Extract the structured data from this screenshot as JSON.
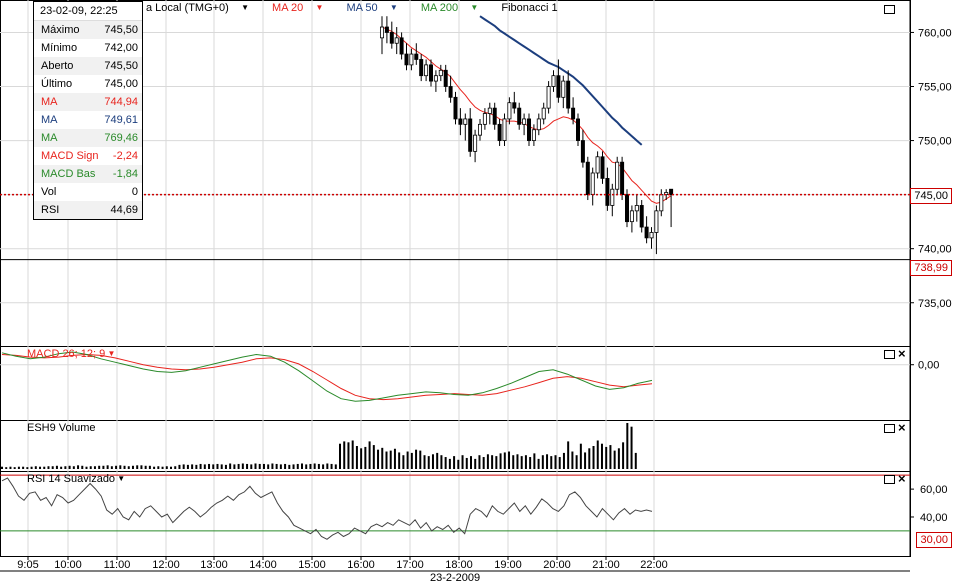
{
  "tooltip": {
    "header": "23-02-09, 22:25",
    "rows": [
      {
        "label": "Máximo",
        "value": "745,50",
        "color": "#000000"
      },
      {
        "label": "Mínimo",
        "value": "742,00",
        "color": "#000000"
      },
      {
        "label": "Aberto",
        "value": "745,50",
        "color": "#000000"
      },
      {
        "label": "Último",
        "value": "745,00",
        "color": "#000000"
      },
      {
        "label": "MA",
        "value": "744,94",
        "color": "#e8241e"
      },
      {
        "label": "MA",
        "value": "749,61",
        "color": "#1c3e7e"
      },
      {
        "label": "MA",
        "value": "769,46",
        "color": "#2a8a2a"
      },
      {
        "label": "MACD Sign",
        "value": "-2,24",
        "color": "#e8241e"
      },
      {
        "label": "MACD Bas",
        "value": "-1,84",
        "color": "#2a8a2a"
      },
      {
        "label": "Vol",
        "value": "0",
        "color": "#000000"
      },
      {
        "label": "RSI",
        "value": "44,69",
        "color": "#000000"
      }
    ]
  },
  "topbar": {
    "timezone": "a Local (TMG+0)",
    "ma20": "MA 20",
    "ma50": "MA 50",
    "ma200": "MA 200",
    "fib": "Fibonacci 1"
  },
  "panels": {
    "macd_label": "MACD 26; 12; 9",
    "volume_label": "ESH9 Volume",
    "rsi_label": "RSI 14 Suavizado"
  },
  "price_boxes": {
    "last": "745,00",
    "level": "738,99",
    "rsi_level": "30,00"
  },
  "x_date": "23-2-2009",
  "colors": {
    "red": "#e8241e",
    "navy": "#1c3e7e",
    "green": "#2a8a2a",
    "grid": "#d9d9d9"
  },
  "chart_data": [
    {
      "type": "candlestick",
      "title": "",
      "y_ticks": [
        "760,00",
        "755,00",
        "750,00",
        "745,00",
        "740,00",
        "735,00"
      ],
      "ylim": [
        731,
        763
      ],
      "x_ticks": [
        "9:05",
        "10:00",
        "11:00",
        "12:00",
        "13:00",
        "14:00",
        "15:00",
        "16:00",
        "17:00",
        "18:00",
        "19:00",
        "20:00",
        "21:00",
        "22:00"
      ],
      "x_start_index": 78,
      "candles": [
        [
          759.5,
          761.5,
          758,
          760.5
        ],
        [
          760.5,
          761.5,
          759,
          760
        ],
        [
          760,
          761,
          758.5,
          759
        ],
        [
          759,
          760.5,
          758,
          759.5
        ],
        [
          759.5,
          760,
          757.5,
          758
        ],
        [
          758,
          759,
          756.5,
          757
        ],
        [
          757,
          758.5,
          756.5,
          758
        ],
        [
          758,
          759,
          757,
          757.5
        ],
        [
          757.5,
          758,
          755.5,
          756
        ],
        [
          756,
          757.5,
          755.5,
          757
        ],
        [
          757,
          757.5,
          755,
          755.5
        ],
        [
          755.5,
          756.5,
          754.5,
          756
        ],
        [
          756,
          757,
          755.5,
          756.5
        ],
        [
          756.5,
          757,
          754.5,
          755
        ],
        [
          755,
          756,
          753.5,
          754
        ],
        [
          754,
          754.5,
          751.5,
          752
        ],
        [
          752,
          753,
          750.5,
          751.5
        ],
        [
          751.5,
          752.5,
          750,
          752
        ],
        [
          752,
          753,
          748.5,
          749
        ],
        [
          749,
          751,
          748,
          750.5
        ],
        [
          750.5,
          752,
          750,
          751.5
        ],
        [
          751.5,
          753,
          751,
          752.5
        ],
        [
          752.5,
          753.5,
          751.5,
          753
        ],
        [
          753,
          753.5,
          751,
          751.5
        ],
        [
          751.5,
          752,
          749.5,
          750
        ],
        [
          750,
          752.5,
          749.5,
          752
        ],
        [
          752,
          754,
          751.5,
          753.5
        ],
        [
          753.5,
          754.5,
          752.5,
          753
        ],
        [
          753,
          753.5,
          751,
          751.5
        ],
        [
          751.5,
          752.5,
          750.5,
          752
        ],
        [
          752,
          752.5,
          749.5,
          750
        ],
        [
          750,
          751.5,
          749.5,
          751
        ],
        [
          751,
          752.5,
          750.5,
          752
        ],
        [
          752,
          753.5,
          751.5,
          753
        ],
        [
          753,
          755.5,
          752.5,
          755
        ],
        [
          755,
          756.5,
          754.5,
          756
        ],
        [
          756,
          757.5,
          753.5,
          754
        ],
        [
          754,
          756,
          753,
          755.5
        ],
        [
          755.5,
          756.5,
          752.5,
          753
        ],
        [
          753,
          754,
          751.5,
          752
        ],
        [
          752,
          752.5,
          749.5,
          750
        ],
        [
          750,
          751,
          747.5,
          748
        ],
        [
          748,
          748.5,
          744.5,
          745
        ],
        [
          745,
          747.5,
          744,
          747
        ],
        [
          747,
          749,
          746.5,
          748.5
        ],
        [
          748.5,
          749,
          746,
          746.5
        ],
        [
          746.5,
          747.5,
          743.5,
          744
        ],
        [
          744,
          746,
          743,
          745.5
        ],
        [
          745.5,
          748.5,
          745,
          748
        ],
        [
          748,
          748.5,
          744.5,
          745
        ],
        [
          745,
          745.5,
          742,
          742.5
        ],
        [
          742.5,
          744,
          741.5,
          743.5
        ],
        [
          743.5,
          745,
          742.5,
          744
        ],
        [
          744,
          744.5,
          741.5,
          742
        ],
        [
          742,
          743,
          740.5,
          741
        ],
        [
          741,
          742,
          740,
          741.5
        ],
        [
          741.5,
          744,
          739.5,
          743.5
        ],
        [
          743.5,
          745.5,
          743,
          745
        ],
        [
          745,
          745.5,
          744.5,
          745.2
        ],
        [
          745.5,
          745.5,
          742,
          745
        ]
      ]
    },
    {
      "type": "line",
      "title": "MA 20",
      "color": "#e8241e",
      "values": [
        760.5,
        760.3,
        760.1,
        759.8,
        759.4,
        759,
        758.6,
        758.3,
        758,
        757.7,
        757.3,
        756.9,
        756.6,
        756.3,
        755.9,
        755.3,
        754.7,
        754.2,
        753.6,
        753.1,
        752.8,
        752.6,
        752.5,
        752.3,
        752,
        751.8,
        751.8,
        751.8,
        751.7,
        751.6,
        751.3,
        751.1,
        751,
        751.1,
        751.4,
        751.8,
        752,
        752.2,
        752.1,
        751.9,
        751.5,
        751,
        750.3,
        749.8,
        749.5,
        749.1,
        748.5,
        748,
        747.9,
        747.5,
        746.9,
        746.3,
        745.9,
        745.4,
        744.9,
        744.4,
        744.2,
        744.3,
        744.6,
        744.9
      ]
    },
    {
      "type": "line",
      "title": "MA 50",
      "color": "#1c3e7e",
      "start_index": 20,
      "values": [
        761.5,
        761.2,
        760.9,
        760.6,
        760.2,
        759.9,
        759.6,
        759.3,
        759,
        758.7,
        758.4,
        758.1,
        757.8,
        757.5,
        757.2,
        757,
        756.8,
        756.5,
        756.2,
        755.9,
        755.5,
        755.1,
        754.6,
        754.1,
        753.6,
        753.1,
        752.6,
        752.1,
        751.7,
        751.2,
        750.8,
        750.4,
        750,
        749.6
      ]
    },
    {
      "type": "line",
      "title": "MACD 26; 12; 9",
      "ylim": [
        -6.5,
        2.2
      ],
      "y_ticks": [
        "0,00"
      ],
      "series": [
        {
          "name": "MACD Sign",
          "color": "#e8241e",
          "values": [
            1.2,
            1.1,
            0.9,
            0.8,
            0.9,
            1.1,
            1.2,
            1.1,
            0.8,
            0.4,
            0.0,
            -0.3,
            -0.5,
            -0.6,
            -0.5,
            -0.3,
            0.0,
            0.3,
            0.7,
            0.8,
            0.6,
            0.1,
            -0.8,
            -1.8,
            -2.8,
            -3.6,
            -4.0,
            -4.1,
            -4.0,
            -3.8,
            -3.6,
            -3.5,
            -3.4,
            -3.5,
            -3.6,
            -3.4,
            -3.0,
            -2.6,
            -2.1,
            -1.6,
            -1.4,
            -1.6,
            -2.0,
            -2.4,
            -2.6,
            -2.4,
            -2.24
          ]
        },
        {
          "name": "MACD Bas",
          "color": "#2a8a2a",
          "values": [
            1.4,
            1.0,
            0.7,
            0.9,
            1.3,
            1.5,
            1.2,
            0.7,
            0.3,
            -0.1,
            -0.5,
            -0.8,
            -0.9,
            -0.7,
            -0.3,
            0.1,
            0.5,
            0.9,
            1.2,
            1.0,
            0.3,
            -0.7,
            -1.9,
            -3.1,
            -4.0,
            -4.3,
            -4.2,
            -3.9,
            -3.6,
            -3.4,
            -3.2,
            -3.3,
            -3.5,
            -3.6,
            -3.3,
            -2.8,
            -2.2,
            -1.5,
            -0.8,
            -0.6,
            -1.1,
            -1.8,
            -2.5,
            -2.9,
            -2.7,
            -2.2,
            -1.84
          ]
        }
      ]
    },
    {
      "type": "bar",
      "title": "ESH9 Volume",
      "values": [
        0.05,
        0.04,
        0.05,
        0.04,
        0.05,
        0.05,
        0.04,
        0.05,
        0.06,
        0.05,
        0.05,
        0.06,
        0.06,
        0.07,
        0.05,
        0.06,
        0.07,
        0.06,
        0.08,
        0.07,
        0.05,
        0.06,
        0.06,
        0.07,
        0.07,
        0.08,
        0.06,
        0.07,
        0.08,
        0.07,
        0.06,
        0.07,
        0.08,
        0.08,
        0.07,
        0.07,
        0.05,
        0.06,
        0.05,
        0.06,
        0.05,
        0.06,
        0.09,
        0.1,
        0.09,
        0.1,
        0.09,
        0.11,
        0.1,
        0.11,
        0.1,
        0.11,
        0.1,
        0.09,
        0.12,
        0.1,
        0.11,
        0.12,
        0.11,
        0.1,
        0.12,
        0.11,
        0.11,
        0.1,
        0.12,
        0.11,
        0.1,
        0.11,
        0.09,
        0.1,
        0.11,
        0.12,
        0.1,
        0.11,
        0.12,
        0.11,
        0.1,
        0.12,
        0.11,
        0.1,
        0.55,
        0.6,
        0.58,
        0.62,
        0.5,
        0.45,
        0.48,
        0.6,
        0.52,
        0.42,
        0.46,
        0.38,
        0.4,
        0.44,
        0.36,
        0.3,
        0.38,
        0.35,
        0.42,
        0.4,
        0.3,
        0.28,
        0.32,
        0.35,
        0.3,
        0.26,
        0.22,
        0.28,
        0.2,
        0.3,
        0.24,
        0.28,
        0.22,
        0.3,
        0.26,
        0.32,
        0.3,
        0.28,
        0.34,
        0.36,
        0.38,
        0.3,
        0.32,
        0.28,
        0.3,
        0.26,
        0.34,
        0.22,
        0.3,
        0.32,
        0.28,
        0.3,
        0.26,
        0.35,
        0.6,
        0.38,
        0.3,
        0.55,
        0.36,
        0.45,
        0.5,
        0.62,
        0.55,
        0.48,
        0.52,
        0.4,
        0.45,
        0.58,
        1.0,
        0.92,
        0.35,
        0.0
      ]
    },
    {
      "type": "line",
      "title": "RSI 14 Suavizado",
      "ylim": [
        12,
        73
      ],
      "y_ticks": [
        "60,00",
        "40,00"
      ],
      "values": [
        66,
        68,
        62,
        55,
        52,
        57,
        58,
        52,
        54,
        48,
        56,
        54,
        50,
        52,
        56,
        60,
        64,
        60,
        55,
        45,
        42,
        46,
        40,
        38,
        44,
        40,
        46,
        48,
        44,
        40,
        42,
        36,
        40,
        44,
        47,
        44,
        40,
        43,
        47,
        50,
        52,
        55,
        52,
        56,
        58,
        62,
        57,
        54,
        56,
        58,
        50,
        44,
        40,
        34,
        32,
        30,
        28,
        31,
        26,
        24,
        27,
        29,
        26,
        28,
        32,
        30,
        28,
        33,
        35,
        33,
        36,
        34,
        38,
        36,
        34,
        38,
        32,
        36,
        30,
        33,
        31,
        34,
        29,
        32,
        28,
        42,
        46,
        44,
        40,
        48,
        44,
        42,
        46,
        50,
        44,
        48,
        42,
        47,
        53,
        50,
        46,
        44,
        48,
        56,
        58,
        54,
        48,
        44,
        40,
        46,
        42,
        38,
        43,
        46,
        42,
        45,
        44,
        45,
        44
      ]
    }
  ]
}
